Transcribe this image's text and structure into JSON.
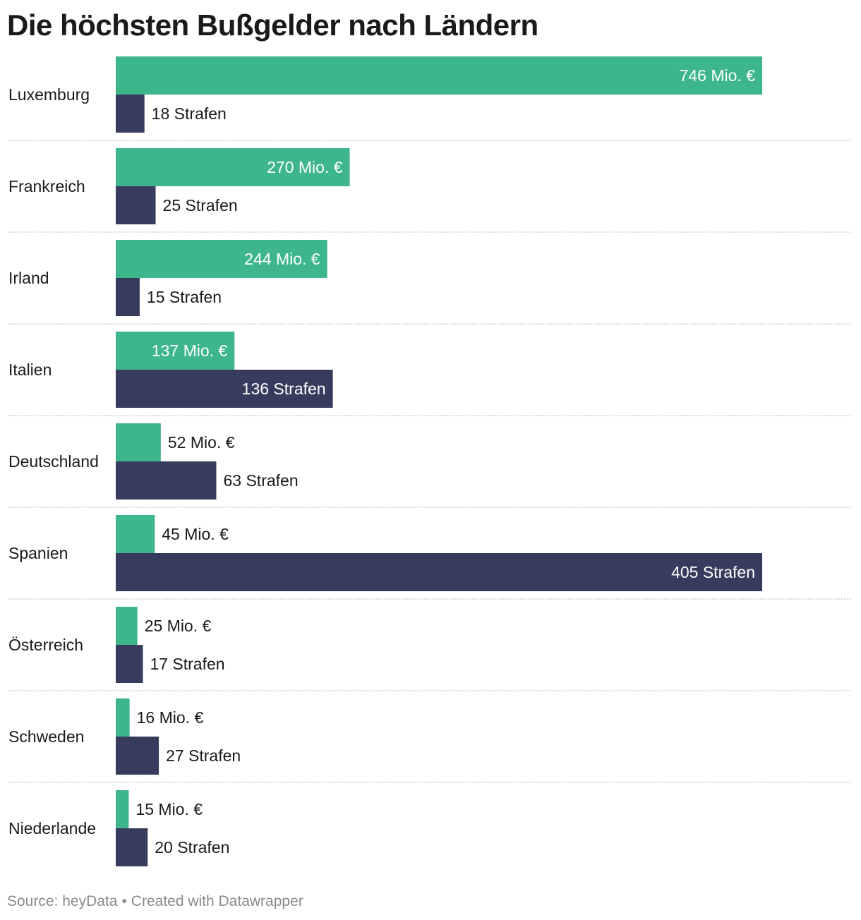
{
  "title": "Die höchsten Bußgelder nach Ländern",
  "footer": {
    "source": "Source: heyData",
    "separator": "•",
    "credit": "Created with Datawrapper"
  },
  "colors": {
    "fines": "#3db68b",
    "count": "#373c5e",
    "divider": "#cccccc"
  },
  "chart_data": {
    "type": "bar",
    "orientation": "horizontal",
    "categories": [
      "Luxemburg",
      "Frankreich",
      "Irland",
      "Italien",
      "Deutschland",
      "Spanien",
      "Österreich",
      "Schweden",
      "Niederlande"
    ],
    "series": [
      {
        "values": [
          746,
          270,
          244,
          137,
          52,
          45,
          25,
          16,
          15
        ],
        "labels": [
          "746 Mio. €",
          "270 Mio. €",
          "244 Mio. €",
          "137 Mio. €",
          "52 Mio. €",
          "45 Mio. €",
          "25 Mio. €",
          "16 Mio. €",
          "15 Mio. €"
        ]
      },
      {
        "values": [
          18,
          25,
          15,
          136,
          63,
          405,
          17,
          27,
          20
        ],
        "labels": [
          "18 Strafen",
          "25 Strafen",
          "15 Strafen",
          "136 Strafen",
          "63 Strafen",
          "405 Strafen",
          "17 Strafen",
          "27 Strafen",
          "20 Strafen"
        ]
      }
    ],
    "title": "Die höchsten Bußgelder nach Ländern",
    "grid": false,
    "legend": "none"
  }
}
